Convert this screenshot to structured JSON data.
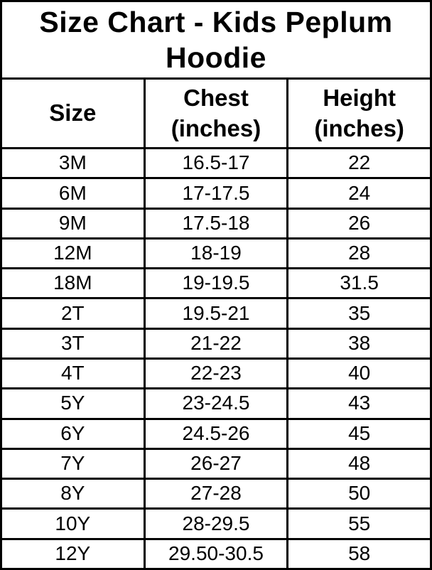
{
  "title": "Size Chart - Kids Peplum Hoodie",
  "colors": {
    "background": "#ffffff",
    "text": "#000000",
    "border": "#000000"
  },
  "chart_data": {
    "type": "table",
    "title": "Size Chart - Kids Peplum Hoodie",
    "columns": [
      "Size",
      "Chest (inches)",
      "Height (inches)"
    ],
    "rows": [
      [
        "3M",
        "16.5-17",
        "22"
      ],
      [
        "6M",
        "17-17.5",
        "24"
      ],
      [
        "9M",
        "17.5-18",
        "26"
      ],
      [
        "12M",
        "18-19",
        "28"
      ],
      [
        "18M",
        "19-19.5",
        "31.5"
      ],
      [
        "2T",
        "19.5-21",
        "35"
      ],
      [
        "3T",
        "21-22",
        "38"
      ],
      [
        "4T",
        "22-23",
        "40"
      ],
      [
        "5Y",
        "23-24.5",
        "43"
      ],
      [
        "6Y",
        "24.5-26",
        "45"
      ],
      [
        "7Y",
        "26-27",
        "48"
      ],
      [
        "8Y",
        "27-28",
        "50"
      ],
      [
        "10Y",
        "28-29.5",
        "55"
      ],
      [
        "12Y",
        "29.50-30.5",
        "58"
      ]
    ]
  }
}
